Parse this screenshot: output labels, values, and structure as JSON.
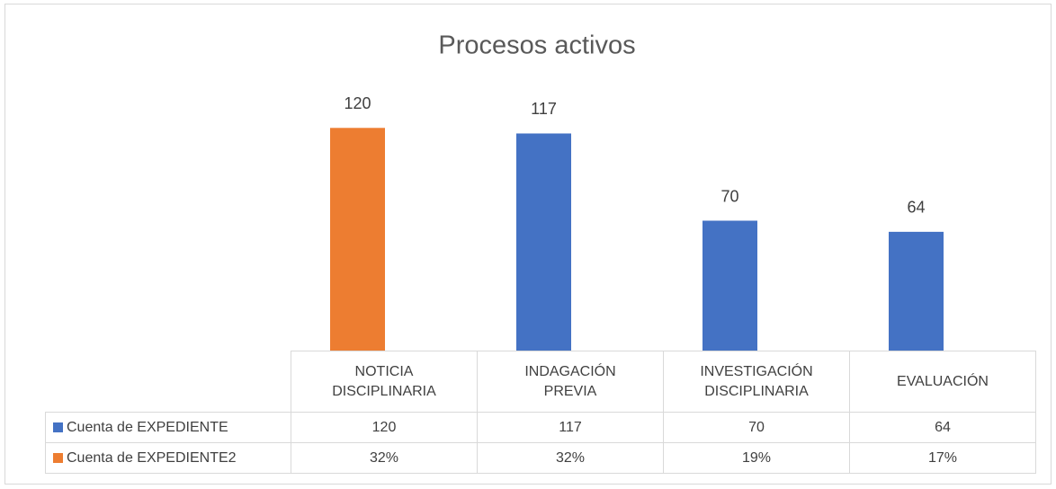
{
  "chart_data": {
    "type": "bar",
    "title": "Procesos activos",
    "categories": [
      "NOTICIA DISCIPLINARIA",
      "INDAGACIÓN PREVIA",
      "INVESTIGACIÓN DISCIPLINARIA",
      "EVALUACIÓN"
    ],
    "series": [
      {
        "name": "Cuenta de EXPEDIENTE",
        "color": "#4472c4",
        "colors": [
          "#ed7d31",
          "#4472c4",
          "#4472c4",
          "#4472c4"
        ],
        "values": [
          120,
          117,
          70,
          64
        ]
      },
      {
        "name": "Cuenta de EXPEDIENTE2",
        "color": "#ed7d31",
        "values": [
          32,
          32,
          19,
          17
        ],
        "value_labels": [
          "32%",
          "32%",
          "19%",
          "17%"
        ]
      }
    ],
    "ylim": [
      0,
      140
    ],
    "data_table": true
  }
}
